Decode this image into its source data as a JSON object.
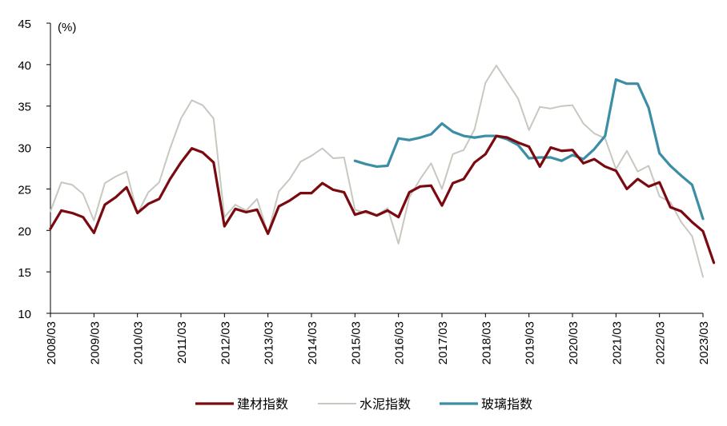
{
  "chart_data": {
    "type": "line",
    "unit_label": "(%)",
    "ylim": [
      10,
      45
    ],
    "y_ticks": [
      10,
      15,
      20,
      25,
      30,
      35,
      40,
      45
    ],
    "x_ticks": [
      "2008/03",
      "2009/03",
      "2010/03",
      "2011/03",
      "2012/03",
      "2013/03",
      "2014/03",
      "2015/03",
      "2016/03",
      "2017/03",
      "2018/03",
      "2019/03",
      "2020/03",
      "2021/03",
      "2022/03",
      "2023/03"
    ],
    "x_start": 0,
    "x_end": 60,
    "legend_position": "bottom",
    "series": [
      {
        "name": "建材指数",
        "color": "#7a0a0f",
        "values": [
          20.2,
          22.4,
          22.1,
          21.6,
          19.7,
          23.1,
          24.0,
          25.2,
          22.1,
          23.2,
          23.8,
          26.2,
          28.2,
          29.9,
          29.4,
          28.2,
          20.5,
          22.6,
          22.2,
          22.5,
          19.6,
          22.9,
          23.6,
          24.5,
          24.5,
          25.7,
          24.9,
          24.6,
          21.9,
          22.3,
          21.8,
          22.4,
          21.6,
          24.6,
          25.3,
          25.4,
          23.0,
          25.7,
          26.2,
          28.2,
          29.2,
          31.4,
          31.2,
          30.6,
          30.1,
          27.7,
          30.0,
          29.6,
          29.7,
          28.1,
          28.6,
          27.7,
          27.2,
          25.0,
          26.2,
          25.3,
          25.8,
          22.8,
          22.3,
          21.0,
          19.9,
          16.1
        ],
        "x_offset": 0
      },
      {
        "name": "水泥指数",
        "color": "#c8c8c0",
        "values": [
          22.3,
          25.8,
          25.5,
          24.4,
          21.2,
          25.7,
          26.5,
          27.1,
          22.0,
          24.6,
          25.8,
          29.9,
          33.5,
          35.7,
          35.1,
          33.5,
          21.6,
          23.1,
          22.4,
          23.8,
          19.6,
          24.7,
          26.2,
          28.3,
          29.0,
          29.9,
          28.7,
          28.8,
          22.5,
          22.1,
          21.8,
          22.7,
          18.4,
          24.0,
          26.2,
          28.1,
          25.0,
          29.2,
          29.7,
          32.2,
          37.8,
          39.9,
          37.9,
          35.9,
          32.1,
          34.9,
          34.7,
          35.0,
          35.1,
          32.9,
          31.7,
          31.1,
          27.4,
          29.6,
          27.1,
          27.8,
          24.1,
          23.4,
          21.0,
          19.3,
          14.4
        ],
        "x_offset": 0
      },
      {
        "name": "玻璃指数",
        "color": "#3b8ea5",
        "values": [
          28.4,
          28.0,
          27.7,
          27.8,
          31.1,
          30.9,
          31.2,
          31.6,
          32.9,
          31.9,
          31.4,
          31.2,
          31.4,
          31.4,
          31.0,
          30.3,
          28.7,
          28.8,
          28.8,
          28.4,
          29.1,
          28.6,
          29.8,
          31.4,
          38.2,
          37.7,
          37.7,
          34.8,
          29.3,
          27.8,
          26.6,
          25.5,
          21.4
        ],
        "x_offset": 28
      }
    ]
  }
}
